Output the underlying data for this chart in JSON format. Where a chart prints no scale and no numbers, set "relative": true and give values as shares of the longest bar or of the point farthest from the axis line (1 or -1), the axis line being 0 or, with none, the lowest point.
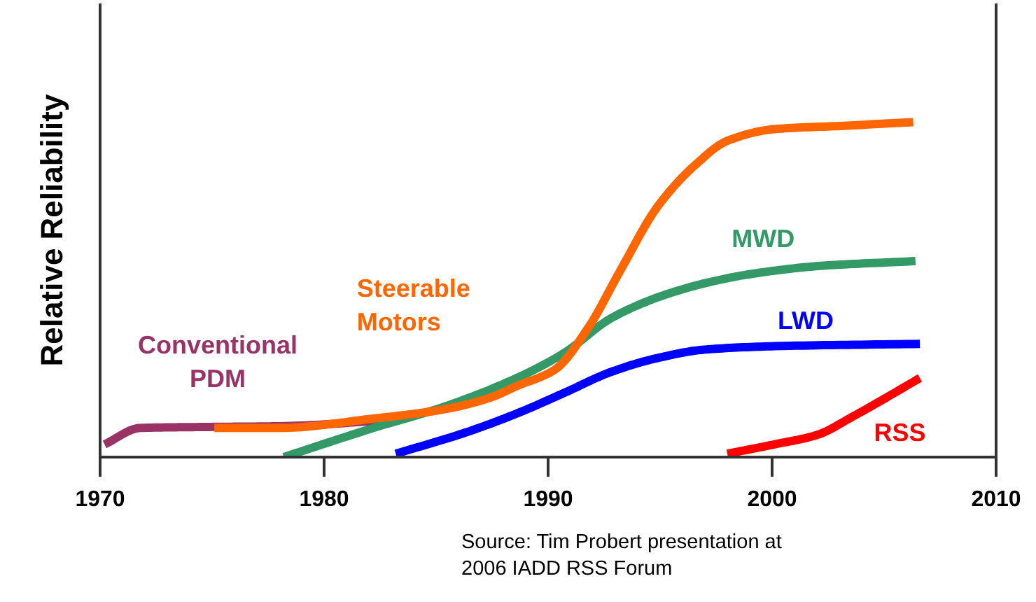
{
  "chart_data": {
    "type": "line",
    "relative": true,
    "ylabel": "Relative Reliability",
    "xlim": [
      1970,
      2010
    ],
    "xticks": [
      1970,
      1980,
      1990,
      2000,
      2010
    ],
    "annotations": [
      "Source: Tim Probert presentation at\n2006 IADD RSS Forum"
    ],
    "series": [
      {
        "name": "Conventional PDM",
        "color": "#993366",
        "x": [
          1970.2,
          1971.8,
          1974.9,
          1978.0,
          1982.8
        ],
        "values": [
          0.038,
          0.087,
          0.09,
          0.092,
          0.11
        ]
      },
      {
        "name": "MWD",
        "color": "#339966",
        "x": [
          1978.2,
          1982.2,
          1985.3,
          1988.6,
          1990.7,
          1992.8,
          1994.9,
          1997.0,
          1999.1,
          2002.2,
          2006.4
        ],
        "values": [
          0.0,
          0.087,
          0.149,
          0.236,
          0.31,
          0.414,
          0.477,
          0.519,
          0.547,
          0.571,
          0.585
        ]
      },
      {
        "name": "LWD",
        "color": "#0000ff",
        "x": [
          1983.2,
          1986.3,
          1988.6,
          1990.7,
          1992.8,
          1994.9,
          1997.0,
          2000.1,
          2006.6
        ],
        "values": [
          0.01,
          0.073,
          0.13,
          0.191,
          0.254,
          0.296,
          0.321,
          0.331,
          0.338
        ]
      },
      {
        "name": "RSS",
        "color": "#ff0000",
        "x": [
          1998.0,
          2000.1,
          2002.0,
          2003.6,
          2006.6
        ],
        "values": [
          0.01,
          0.038,
          0.066,
          0.121,
          0.236
        ]
      },
      {
        "name": "Steerable Motors",
        "color": "#ff6600",
        "x": [
          1975.1,
          1978.0,
          1982.2,
          1985.3,
          1987.4,
          1988.6,
          1990.3,
          1991.8,
          1993.2,
          1994.9,
          1996.6,
          1998.0,
          2000.1,
          2003.2,
          2006.3
        ],
        "values": [
          0.087,
          0.087,
          0.115,
          0.142,
          0.177,
          0.212,
          0.261,
          0.387,
          0.554,
          0.749,
          0.874,
          0.944,
          0.979,
          0.989,
          1.0
        ]
      }
    ]
  }
}
